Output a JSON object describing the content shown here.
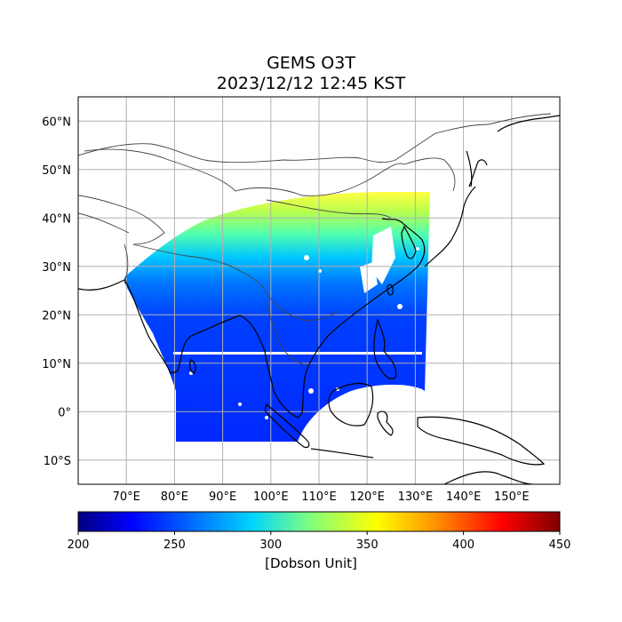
{
  "title": {
    "line1": "GEMS O3T",
    "line2": "2023/12/12 12:45 KST"
  },
  "map": {
    "lon_range": [
      60,
      160
    ],
    "lat_range": [
      -15,
      65
    ],
    "lon_ticks": [
      "70°E",
      "80°E",
      "90°E",
      "100°E",
      "110°E",
      "120°E",
      "130°E",
      "140°E",
      "150°E"
    ],
    "lat_ticks": [
      "60°N",
      "50°N",
      "40°N",
      "30°N",
      "20°N",
      "10°N",
      "0°",
      "10°S"
    ],
    "gridlines": true,
    "field": "Total column ozone"
  },
  "colorbar": {
    "label": "[Dobson Unit]",
    "min": 200,
    "max": 450,
    "ticks": [
      "200",
      "250",
      "300",
      "350",
      "400",
      "450"
    ],
    "colormap": "jet",
    "colors": [
      "#00007f",
      "#0000ff",
      "#007fff",
      "#00ffff",
      "#7fff7f",
      "#ffff00",
      "#ff7f00",
      "#ff0000",
      "#7f0000"
    ]
  }
}
